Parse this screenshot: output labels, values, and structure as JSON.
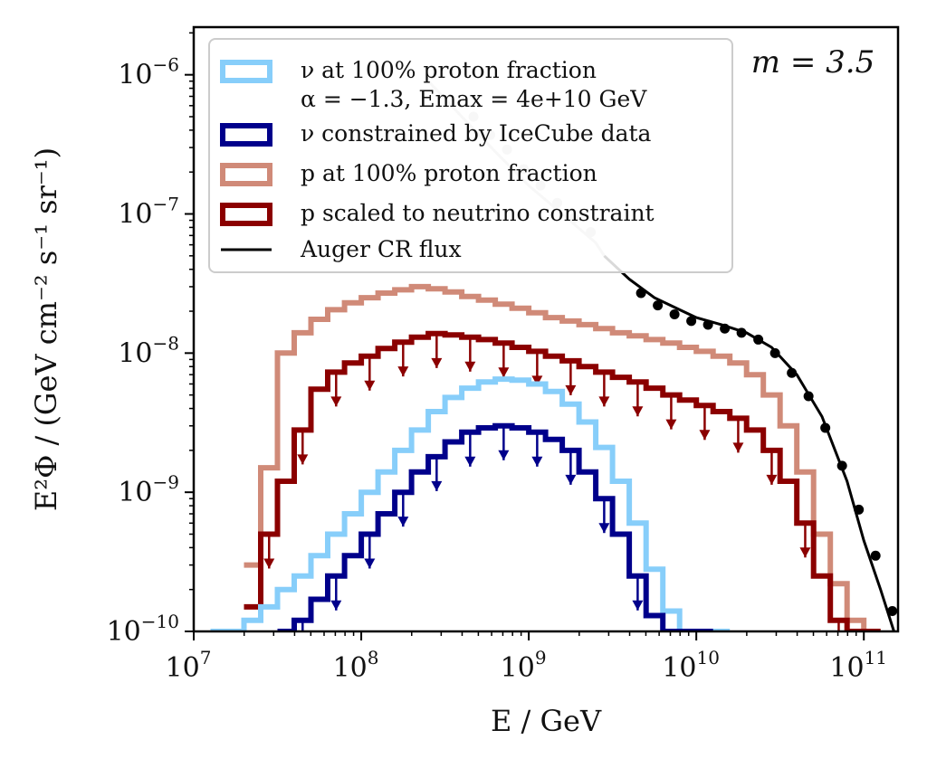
{
  "chart_data": {
    "type": "line",
    "xlabel": "E / GeV",
    "ylabel": "E²Φ / (GeV cm⁻² s⁻¹ sr⁻¹)",
    "xscale": "log",
    "yscale": "log",
    "xlim": [
      10000000.0,
      160000000000.0
    ],
    "ylim": [
      1e-10,
      2.2e-06
    ],
    "x_ticks": [
      {
        "value": 10000000.0,
        "base": "10",
        "exp": "7"
      },
      {
        "value": 100000000.0,
        "base": "10",
        "exp": "8"
      },
      {
        "value": 1000000000.0,
        "base": "10",
        "exp": "9"
      },
      {
        "value": 10000000000.0,
        "base": "10",
        "exp": "10"
      },
      {
        "value": 100000000000.0,
        "base": "10",
        "exp": "11"
      }
    ],
    "y_ticks": [
      {
        "value": 1e-10,
        "base": "10",
        "exp": "−10"
      },
      {
        "value": 1e-09,
        "base": "10",
        "exp": "−9"
      },
      {
        "value": 1e-08,
        "base": "10",
        "exp": "−8"
      },
      {
        "value": 1e-07,
        "base": "10",
        "exp": "−7"
      },
      {
        "value": 1e-06,
        "base": "10",
        "exp": "−6"
      }
    ],
    "annotation": "m = 3.5",
    "legend_position": "top",
    "grid": false,
    "legend": [
      {
        "label": "ν at 100% proton fraction",
        "label2": "α = −1.3, Emax = 4e+10 GeV",
        "color": "#87cefa",
        "kind": "box"
      },
      {
        "label": "ν constrained by IceCube data",
        "color": "#00008b",
        "kind": "box"
      },
      {
        "label": "p at 100% proton fraction",
        "color": "#d08a78",
        "kind": "box"
      },
      {
        "label": "p scaled to neutrino constraint",
        "color": "#8b0000",
        "kind": "box"
      },
      {
        "label": "Auger CR flux",
        "color": "#000000",
        "kind": "line"
      }
    ],
    "series": [
      {
        "color": "#d08a78",
        "style": "step",
        "edges_log10": [
          7.0,
          7.1,
          7.2,
          7.3,
          7.4,
          7.5,
          7.6,
          7.7,
          7.8,
          7.9,
          8.0,
          8.1,
          8.2,
          8.3,
          8.4,
          8.5,
          8.6,
          8.7,
          8.8,
          8.9,
          9.0,
          9.1,
          9.2,
          9.3,
          9.4,
          9.5,
          9.6,
          9.7,
          9.8,
          9.9,
          10.0,
          10.1,
          10.2,
          10.3,
          10.4,
          10.5,
          10.6,
          10.7,
          10.8,
          10.9,
          11.0,
          11.1,
          11.2
        ],
        "values": [
          null,
          null,
          null,
          3e-10,
          1.5e-09,
          1e-08,
          1.4e-08,
          1.75e-08,
          2.05e-08,
          2.3e-08,
          2.5e-08,
          2.7e-08,
          2.85e-08,
          3e-08,
          2.9e-08,
          2.75e-08,
          2.55e-08,
          2.4e-08,
          2.25e-08,
          2.1e-08,
          1.95e-08,
          1.8e-08,
          1.7e-08,
          1.6e-08,
          1.5e-08,
          1.4e-08,
          1.33e-08,
          1.25e-08,
          1.18e-08,
          1.1e-08,
          1.03e-08,
          9.5e-09,
          8.5e-09,
          7e-09,
          5e-09,
          3e-09,
          1.4e-09,
          5e-10,
          2.2e-10,
          1.2e-10,
          1e-10,
          null
        ]
      },
      {
        "color": "#8b0000",
        "style": "step",
        "arrows": true,
        "edges_log10": [
          7.0,
          7.1,
          7.2,
          7.3,
          7.4,
          7.5,
          7.6,
          7.7,
          7.8,
          7.9,
          8.0,
          8.1,
          8.2,
          8.3,
          8.4,
          8.5,
          8.6,
          8.7,
          8.8,
          8.9,
          9.0,
          9.1,
          9.2,
          9.3,
          9.4,
          9.5,
          9.6,
          9.7,
          9.8,
          9.9,
          10.0,
          10.1,
          10.2,
          10.3,
          10.4,
          10.5,
          10.6,
          10.7,
          10.8,
          10.9,
          11.0,
          11.1,
          11.2
        ],
        "values": [
          null,
          null,
          null,
          1.5e-10,
          5e-10,
          1.2e-09,
          2.8e-09,
          5.5e-09,
          7.3e-09,
          8.5e-09,
          9.5e-09,
          1.08e-08,
          1.2e-08,
          1.3e-08,
          1.38e-08,
          1.35e-08,
          1.3e-08,
          1.25e-08,
          1.18e-08,
          1.1e-08,
          1.03e-08,
          9.5e-09,
          8.8e-09,
          8e-09,
          7.3e-09,
          6.7e-09,
          6.2e-09,
          5.6e-09,
          5e-09,
          4.6e-09,
          4.2e-09,
          3.8e-09,
          3.4e-09,
          2.8e-09,
          2e-09,
          1.2e-09,
          6e-10,
          2.5e-10,
          1.2e-10,
          1e-10,
          1e-10,
          null
        ]
      },
      {
        "color": "#87cefa",
        "style": "step",
        "edges_log10": [
          7.0,
          7.1,
          7.2,
          7.3,
          7.4,
          7.5,
          7.6,
          7.7,
          7.8,
          7.9,
          8.0,
          8.1,
          8.2,
          8.3,
          8.4,
          8.5,
          8.6,
          8.7,
          8.8,
          8.9,
          9.0,
          9.1,
          9.2,
          9.3,
          9.4,
          9.5,
          9.6,
          9.7,
          9.8,
          9.9,
          10.0,
          10.1,
          10.2,
          10.3,
          10.4,
          10.5,
          10.6,
          10.7,
          10.8,
          10.9,
          11.0,
          11.1,
          11.2
        ],
        "values": [
          null,
          1e-10,
          1e-10,
          1.2e-10,
          1.5e-10,
          2e-10,
          2.5e-10,
          3.5e-10,
          5e-10,
          7e-10,
          1e-09,
          1.4e-09,
          2e-09,
          2.8e-09,
          3.8e-09,
          4.8e-09,
          5.6e-09,
          6.2e-09,
          6.5e-09,
          6.4e-09,
          6e-09,
          5.3e-09,
          4.3e-09,
          3.2e-09,
          2.1e-09,
          1.2e-09,
          6e-10,
          2.8e-10,
          1.4e-10,
          1e-10,
          1e-10,
          1e-10,
          null,
          null,
          null,
          null,
          null,
          null,
          null,
          null,
          null,
          null
        ]
      },
      {
        "color": "#00008b",
        "style": "step",
        "arrows": true,
        "edges_log10": [
          7.0,
          7.1,
          7.2,
          7.3,
          7.4,
          7.5,
          7.6,
          7.7,
          7.8,
          7.9,
          8.0,
          8.1,
          8.2,
          8.3,
          8.4,
          8.5,
          8.6,
          8.7,
          8.8,
          8.9,
          9.0,
          9.1,
          9.2,
          9.3,
          9.4,
          9.5,
          9.6,
          9.7,
          9.8,
          9.9,
          10.0,
          10.1,
          10.2,
          10.3,
          10.4,
          10.5,
          10.6,
          10.7,
          10.8,
          10.9,
          11.0,
          11.1,
          11.2
        ],
        "values": [
          null,
          null,
          null,
          null,
          null,
          1e-10,
          1.2e-10,
          1.7e-10,
          2.5e-10,
          3.5e-10,
          5e-10,
          7e-10,
          1e-09,
          1.4e-09,
          1.8e-09,
          2.3e-09,
          2.7e-09,
          2.9e-09,
          3e-09,
          2.9e-09,
          2.7e-09,
          2.4e-09,
          2e-09,
          1.4e-09,
          9e-10,
          5e-10,
          2.5e-10,
          1.3e-10,
          1e-10,
          1e-10,
          1e-10,
          null,
          null,
          null,
          null,
          null,
          null,
          null,
          null,
          null,
          null,
          null
        ]
      },
      {
        "color": "#000000",
        "style": "line",
        "x_log10": [
          9.45,
          9.6,
          9.75,
          9.9,
          10.0,
          10.15,
          10.3,
          10.45,
          10.6,
          10.75,
          10.9,
          11.0,
          11.1,
          11.18
        ],
        "y": [
          5e-08,
          3.4e-08,
          2.5e-08,
          2.05e-08,
          1.8e-08,
          1.6e-08,
          1.4e-08,
          1.1e-08,
          7e-09,
          3.5e-09,
          1.2e-09,
          4.5e-10,
          2e-10,
          1e-10
        ]
      },
      {
        "color": "#c8c8c8",
        "style": "line",
        "x_log10": [
          8.4,
          8.6,
          8.8,
          9.0,
          9.2,
          9.4,
          9.45
        ],
        "y": [
          9e-07,
          5e-07,
          2.8e-07,
          1.6e-07,
          1e-07,
          6.2e-08,
          5e-08
        ]
      },
      {
        "color": "#c8c8c8",
        "style": "markers",
        "x_log10": [
          8.67,
          8.77,
          8.87,
          8.97,
          9.07,
          9.17,
          9.27,
          9.37
        ],
        "y": [
          5e-07,
          3.7e-07,
          2.9e-07,
          2.1e-07,
          1.6e-07,
          1.2e-07,
          9.3e-08,
          7.4e-08
        ]
      },
      {
        "color": "#000000",
        "style": "markers",
        "x_log10": [
          9.67,
          9.77,
          9.87,
          9.97,
          10.07,
          10.17,
          10.27,
          10.37,
          10.47,
          10.57,
          10.67,
          10.77,
          10.87,
          10.97,
          11.07,
          11.17
        ],
        "y": [
          2.7e-08,
          2.2e-08,
          1.9e-08,
          1.7e-08,
          1.6e-08,
          1.5e-08,
          1.4e-08,
          1.25e-08,
          1e-08,
          7.2e-09,
          4.9e-09,
          2.9e-09,
          1.55e-09,
          7.5e-10,
          3.5e-10,
          1.4e-10
        ]
      }
    ]
  }
}
